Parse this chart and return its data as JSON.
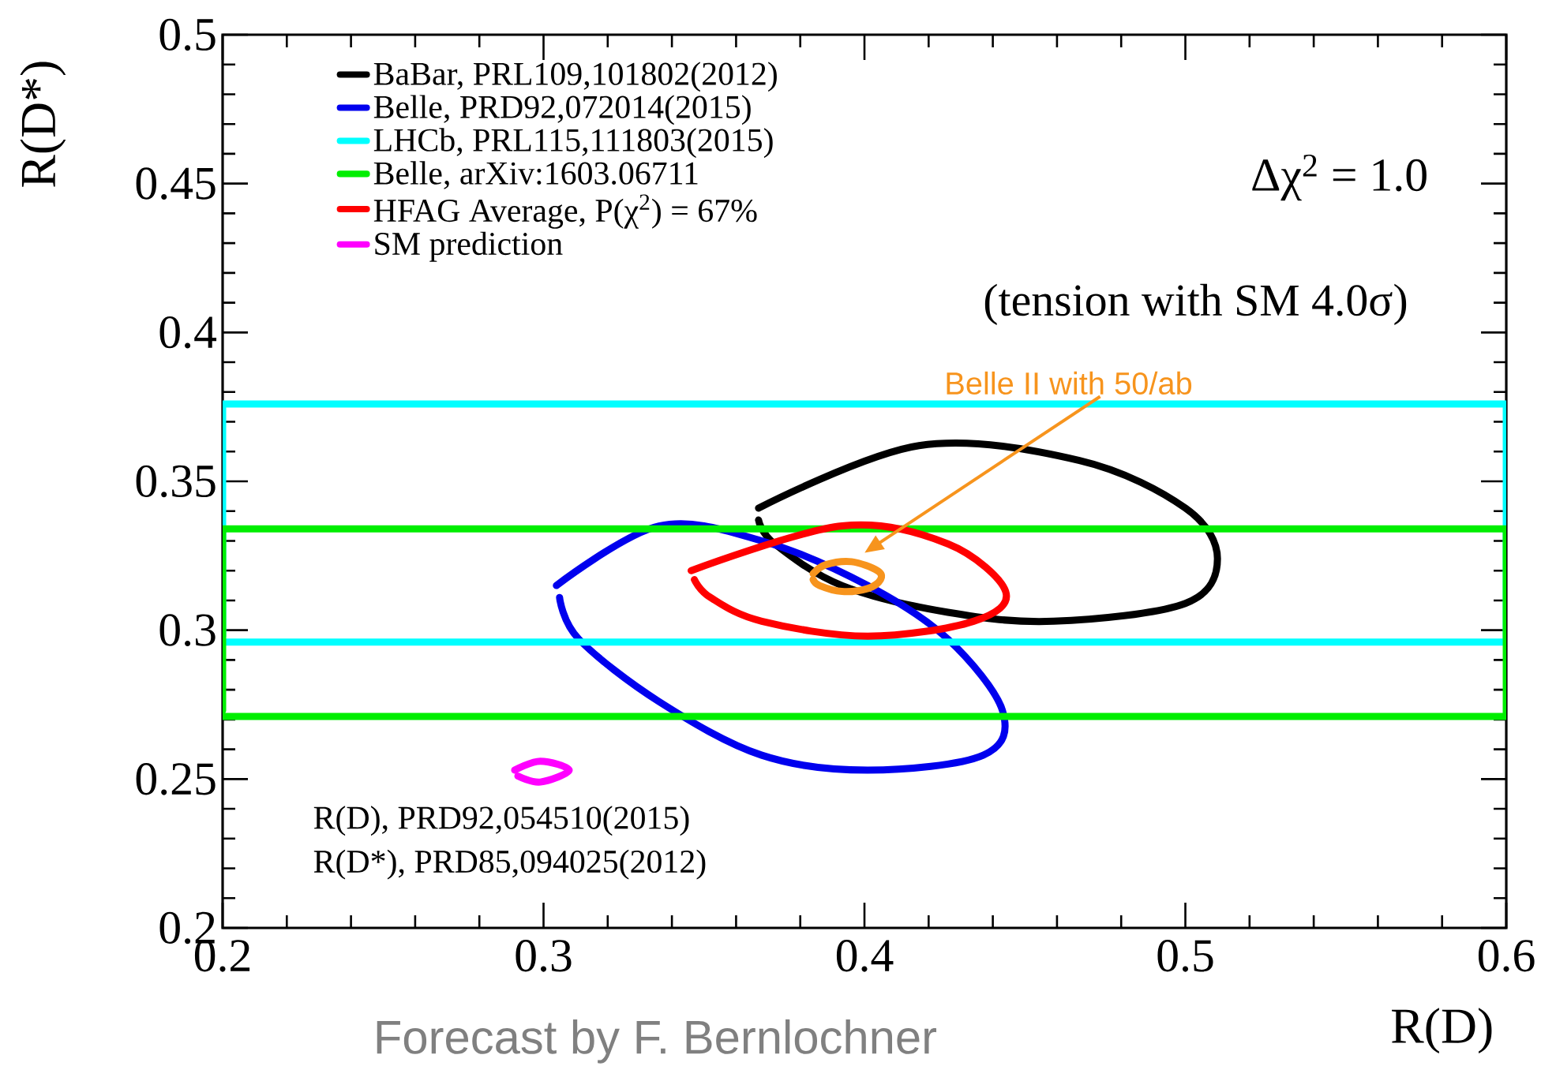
{
  "chart_data": {
    "type": "line",
    "xlabel": "R(D)",
    "ylabel": "R(D*)",
    "xlim": [
      0.2,
      0.6
    ],
    "ylim": [
      0.2,
      0.5
    ],
    "xticks": [
      0.2,
      0.3,
      0.4,
      0.5,
      0.6
    ],
    "yticks": [
      0.2,
      0.25,
      0.3,
      0.35,
      0.4,
      0.45,
      0.5
    ],
    "legend": "top left",
    "series": [
      {
        "name": "BaBar, PRL109,101802(2012)",
        "color": "#000000",
        "x": [
          0.367,
          0.417,
          0.467,
          0.5,
          0.51,
          0.5,
          0.459,
          0.426,
          0.393,
          0.372,
          0.367
        ],
        "values": [
          0.341,
          0.362,
          0.357,
          0.341,
          0.324,
          0.309,
          0.303,
          0.306,
          0.315,
          0.329,
          0.337
        ]
      },
      {
        "name": "Belle, PRD92,072014(2015)",
        "color": "#0000ee",
        "x": [
          0.304,
          0.336,
          0.368,
          0.401,
          0.426,
          0.443,
          0.437,
          0.401,
          0.368,
          0.336,
          0.311,
          0.305
        ],
        "values": [
          0.315,
          0.335,
          0.33,
          0.315,
          0.297,
          0.273,
          0.258,
          0.253,
          0.258,
          0.276,
          0.297,
          0.311
        ]
      },
      {
        "name": "LHCb, PRL115,111803(2015)",
        "color": "#00ffff",
        "x": [
          0.2,
          0.6,
          0.6,
          0.2,
          0.2
        ],
        "values": [
          0.296,
          0.296,
          0.376,
          0.376,
          0.298
        ]
      },
      {
        "name": "Belle, arXiv:1603.06711",
        "color": "#00ee00",
        "x": [
          0.2,
          0.6,
          0.6,
          0.2,
          0.2
        ],
        "values": [
          0.271,
          0.271,
          0.334,
          0.334,
          0.273
        ]
      },
      {
        "name": "HFAG Average, P(χ$^{2}$) = 67%",
        "color": "#ff0000",
        "x": [
          0.346,
          0.393,
          0.426,
          0.444,
          0.434,
          0.401,
          0.368,
          0.352,
          0.347
        ],
        "values": [
          0.32,
          0.335,
          0.329,
          0.313,
          0.303,
          0.298,
          0.303,
          0.311,
          0.317
        ]
      },
      {
        "name": "SM prediction",
        "color": "#ff00ff",
        "x": [
          0.291,
          0.299,
          0.308,
          0.299,
          0.292
        ],
        "values": [
          0.253,
          0.256,
          0.253,
          0.249,
          0.251
        ]
      },
      {
        "color": "#f7941d",
        "x": [
          0.384,
          0.388,
          0.396,
          0.404,
          0.405,
          0.401,
          0.393,
          0.386,
          0.384
        ],
        "values": [
          0.319,
          0.322,
          0.323,
          0.32,
          0.317,
          0.314,
          0.313,
          0.315,
          0.317
        ]
      }
    ],
    "annotations": [
      "Δχ$^{2}$ = 1.0",
      "(tension with SM 4.0σ)",
      "Belle II with 50/ab",
      "R(D), PRD92,054510(2015)",
      "R(D*), PRD85,094025(2012)",
      "Forecast by F. Bernlochner"
    ]
  }
}
